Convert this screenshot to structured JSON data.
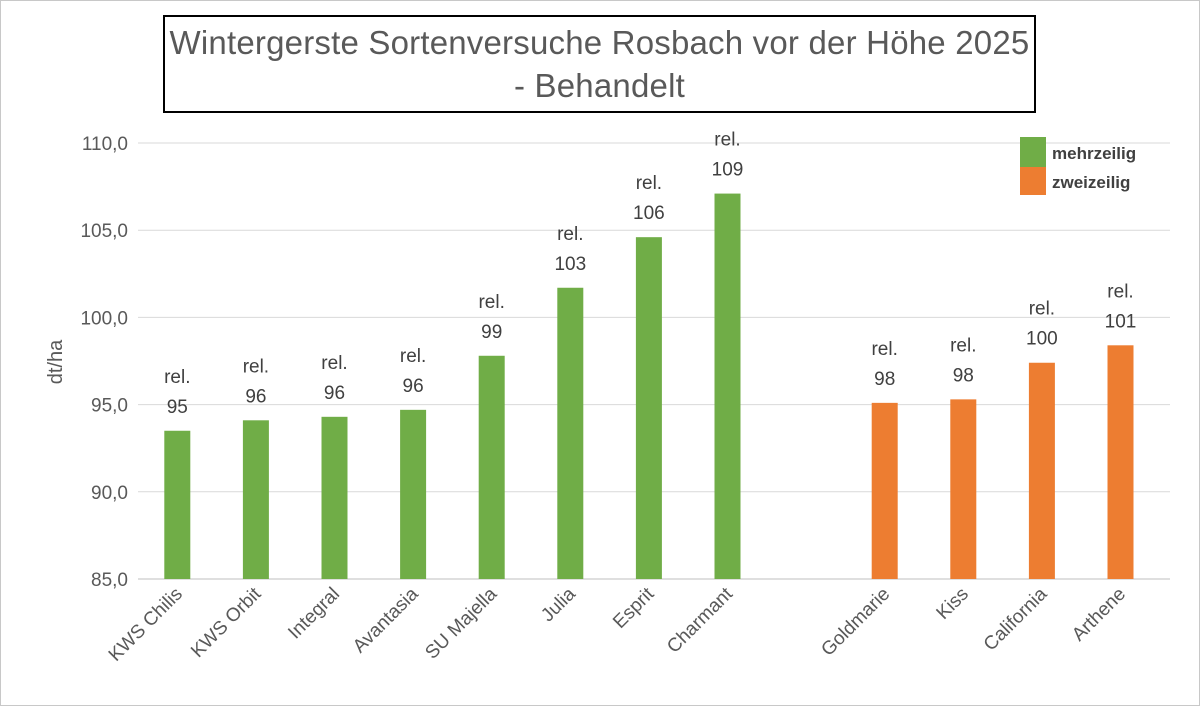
{
  "chart_data": {
    "type": "bar",
    "title_lines": [
      "Wintergerste Sortenversuche Rosbach vor der Höhe 2025",
      "- Behandelt"
    ],
    "xlabel": "",
    "ylabel": "dt/ha",
    "ylim": [
      85,
      110
    ],
    "yticks": [
      "85,0",
      "90,0",
      "95,0",
      "100,0",
      "105,0",
      "110,0"
    ],
    "ytick_values": [
      85,
      90,
      95,
      100,
      105,
      110
    ],
    "grid": true,
    "legend_position": "top-right",
    "groups": [
      {
        "name": "mehrzeilig",
        "color": "#70ad47",
        "categories": [
          "KWS Chilis",
          "KWS Orbit",
          "Integral",
          "Avantasia",
          "SU Majella",
          "Julia",
          "Esprit",
          "Charmant"
        ],
        "values": [
          93.5,
          94.1,
          94.3,
          94.7,
          97.8,
          101.7,
          104.6,
          107.1
        ],
        "rel_labels": [
          "95",
          "96",
          "96",
          "96",
          "99",
          "103",
          "106",
          "109"
        ]
      },
      {
        "name": "zweizeilig",
        "color": "#ed7d31",
        "categories": [
          "Goldmarie",
          "Kiss",
          "California",
          "Arthene"
        ],
        "values": [
          95.1,
          95.3,
          97.4,
          98.4
        ],
        "rel_labels": [
          "98",
          "98",
          "100",
          "101"
        ]
      }
    ],
    "rel_prefix": "rel."
  }
}
